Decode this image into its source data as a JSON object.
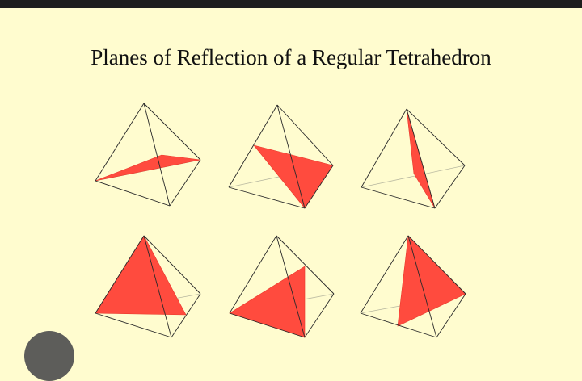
{
  "title": "Planes of Reflection of a Regular Tetrahedron",
  "colors": {
    "background": "#fffccf",
    "plane": "#ff4b3e",
    "edge": "#2a2a2a"
  },
  "panel_count": 6
}
